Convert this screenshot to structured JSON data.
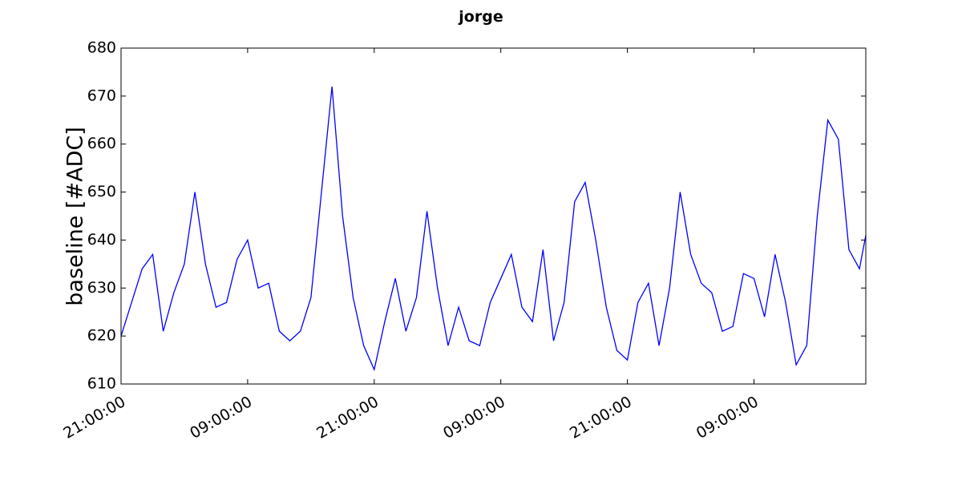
{
  "chart_data": {
    "type": "line",
    "title": "jorge",
    "y_label": "baseline [#ADC]",
    "x": [
      0,
      1,
      2,
      3,
      4,
      5,
      6,
      7,
      8,
      9,
      10,
      11,
      12,
      13,
      14,
      15,
      16,
      17,
      18,
      19,
      20,
      21,
      22,
      23,
      24,
      25,
      26,
      27,
      28,
      29,
      30,
      31,
      32,
      33,
      34,
      35,
      36,
      37,
      38,
      39,
      40,
      41,
      42,
      43,
      44,
      45,
      46,
      47,
      48,
      49,
      50,
      51,
      52,
      53,
      54,
      55,
      56,
      57,
      58,
      59,
      60,
      61,
      62,
      63,
      64,
      65,
      66,
      67,
      68,
      69,
      70,
      70.6
    ],
    "series": [
      {
        "name": "baseline",
        "color": "#0000ff",
        "values": [
          620,
          627,
          634,
          637,
          621,
          629,
          635,
          650,
          635,
          626,
          627,
          636,
          640,
          630,
          631,
          621,
          619,
          621,
          628,
          650,
          672,
          645,
          628,
          618,
          613,
          623,
          632,
          621,
          628,
          646,
          630,
          618,
          626,
          619,
          618,
          627,
          632,
          637,
          626,
          623,
          638,
          619,
          627,
          648,
          652,
          640,
          626,
          617,
          615,
          627,
          631,
          618,
          630,
          650,
          637,
          631,
          629,
          621,
          622,
          633,
          632,
          624,
          637,
          627,
          614,
          618,
          645,
          665,
          661,
          638,
          634,
          641
        ]
      }
    ],
    "xlim": [
      0,
      70.6
    ],
    "xticks": [
      {
        "value": 0,
        "label": "21:00:00"
      },
      {
        "value": 12,
        "label": "09:00:00"
      },
      {
        "value": 24,
        "label": "21:00:00"
      },
      {
        "value": 36,
        "label": "09:00:00"
      },
      {
        "value": 48,
        "label": "21:00:00"
      },
      {
        "value": 60,
        "label": "09:00:00"
      }
    ],
    "ylim": [
      610,
      680
    ],
    "yticks": [
      610,
      620,
      630,
      640,
      650,
      660,
      670,
      680
    ],
    "grid": false
  }
}
